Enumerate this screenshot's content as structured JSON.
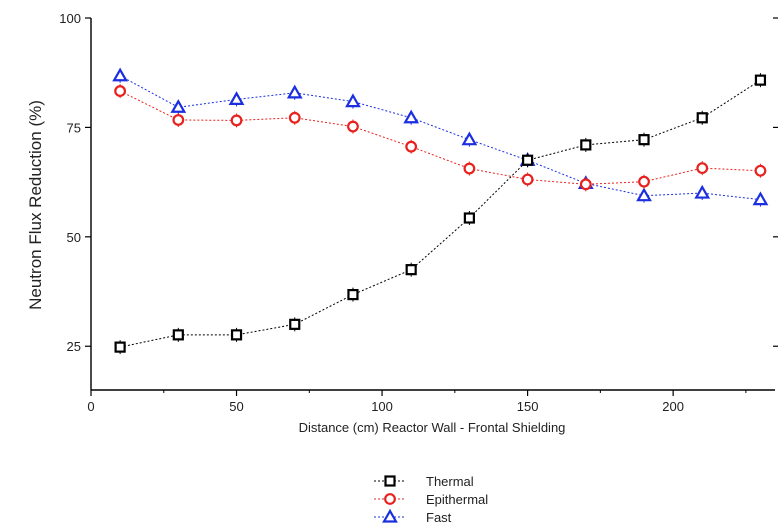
{
  "chart_data": {
    "type": "line",
    "title": "",
    "xlabel": "Distance (cm) Reactor Wall - Frontal Shielding",
    "ylabel": "Neutron Flux Reduction (%)",
    "xlim": [
      0,
      235
    ],
    "ylim": [
      15,
      100
    ],
    "x_ticks": [
      0,
      50,
      100,
      150,
      200
    ],
    "y_ticks": [
      25,
      50,
      75,
      100
    ],
    "grid": false,
    "legend_position": "bottom-center",
    "x": [
      10,
      30,
      50,
      70,
      90,
      110,
      130,
      150,
      170,
      190,
      210,
      230
    ],
    "series": [
      {
        "name": "Thermal",
        "color": "#000000",
        "marker": "square",
        "values": [
          24.8,
          27.6,
          27.6,
          30.0,
          36.8,
          42.5,
          54.3,
          67.5,
          71.0,
          72.2,
          77.2,
          85.8
        ]
      },
      {
        "name": "Epithermal",
        "color": "#e8211e",
        "marker": "circle",
        "values": [
          83.3,
          76.7,
          76.6,
          77.2,
          75.2,
          70.6,
          65.6,
          63.1,
          62.0,
          62.6,
          65.7,
          65.1
        ]
      },
      {
        "name": "Fast",
        "color": "#1b2fe0",
        "marker": "triangle",
        "values": [
          86.8,
          79.6,
          81.4,
          82.9,
          80.9,
          77.2,
          72.2,
          67.5,
          62.2,
          59.4,
          60.0,
          58.5
        ]
      }
    ]
  }
}
